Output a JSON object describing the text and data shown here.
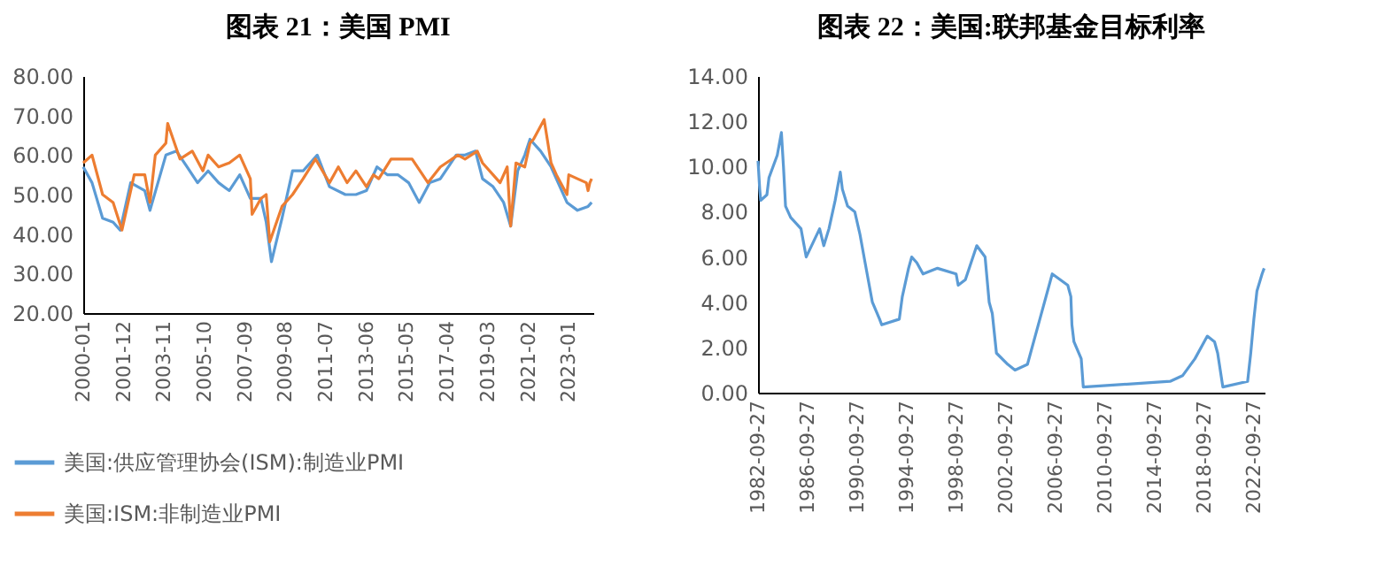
{
  "chart_data": [
    {
      "type": "line",
      "title": "图表 21：美国 PMI",
      "legend": "bottom left",
      "xlim": [
        "2000-01",
        "2024-03"
      ],
      "xticks": [
        "2000-01",
        "2001-12",
        "2003-11",
        "2005-10",
        "2007-09",
        "2009-08",
        "2011-07",
        "2013-06",
        "2015-05",
        "2017-04",
        "2019-03",
        "2021-02",
        "2023-01"
      ],
      "ylim": [
        20,
        80
      ],
      "yticks": [
        {
          "value": 20,
          "label": "20.00"
        },
        {
          "value": 30,
          "label": "30.00"
        },
        {
          "value": 40,
          "label": "40.00"
        },
        {
          "value": 50,
          "label": "50.00"
        },
        {
          "value": 60,
          "label": "60.00"
        },
        {
          "value": 70,
          "label": "70.00"
        },
        {
          "value": 80,
          "label": "80.00"
        }
      ],
      "series": [
        {
          "name": "美国:供应管理协会(ISM):制造业PMI",
          "color": "#5b9bd5",
          "x": [
            "2000-01",
            "2000-06",
            "2000-12",
            "2001-06",
            "2001-10",
            "2002-04",
            "2002-12",
            "2003-03",
            "2003-12",
            "2004-06",
            "2004-12",
            "2005-06",
            "2005-12",
            "2006-06",
            "2006-12",
            "2007-06",
            "2007-12",
            "2008-06",
            "2008-09",
            "2008-12",
            "2009-06",
            "2009-12",
            "2010-06",
            "2011-02",
            "2011-09",
            "2012-06",
            "2012-12",
            "2013-06",
            "2013-12",
            "2014-06",
            "2014-12",
            "2015-06",
            "2015-12",
            "2016-06",
            "2016-12",
            "2017-09",
            "2018-02",
            "2018-08",
            "2018-12",
            "2019-06",
            "2019-12",
            "2020-04",
            "2020-08",
            "2020-12",
            "2021-03",
            "2021-09",
            "2022-03",
            "2022-09",
            "2022-12",
            "2023-06",
            "2023-12",
            "2024-02"
          ],
          "values": [
            57,
            53,
            44,
            43,
            41,
            53,
            51,
            46,
            60,
            61,
            57,
            53,
            56,
            53,
            51,
            55,
            49,
            49,
            43,
            33,
            44,
            56,
            56,
            60,
            52,
            50,
            50,
            51,
            57,
            55,
            55,
            53,
            48,
            53,
            54,
            60,
            60,
            61,
            54,
            52,
            48,
            42,
            56,
            60,
            64,
            61,
            57,
            51,
            48,
            46,
            47,
            48
          ]
        },
        {
          "name": "美国:ISM:非制造业PMI",
          "color": "#ed7d31",
          "x": [
            "2000-01",
            "2000-06",
            "2000-12",
            "2001-06",
            "2001-11",
            "2002-06",
            "2002-12",
            "2003-03",
            "2003-06",
            "2003-12",
            "2004-01",
            "2004-08",
            "2005-03",
            "2005-09",
            "2005-12",
            "2006-06",
            "2006-12",
            "2007-06",
            "2007-12",
            "2008-01",
            "2008-06",
            "2008-09",
            "2008-11",
            "2009-06",
            "2009-12",
            "2010-06",
            "2011-01",
            "2011-09",
            "2012-02",
            "2012-07",
            "2012-12",
            "2013-06",
            "2013-10",
            "2014-01",
            "2014-08",
            "2015-08",
            "2016-05",
            "2016-12",
            "2017-10",
            "2018-02",
            "2018-09",
            "2018-12",
            "2019-06",
            "2019-10",
            "2020-02",
            "2020-04",
            "2020-07",
            "2020-12",
            "2021-03",
            "2021-05",
            "2021-11",
            "2022-03",
            "2022-06",
            "2022-12",
            "2023-01",
            "2023-06",
            "2023-11",
            "2023-12",
            "2024-01",
            "2024-02"
          ],
          "values": [
            58,
            60,
            50,
            48,
            41,
            55,
            55,
            48,
            60,
            63,
            68,
            59,
            61,
            56,
            60,
            57,
            58,
            60,
            54,
            45,
            49,
            50,
            38,
            47,
            50,
            54,
            59,
            53,
            57,
            53,
            56,
            52,
            55,
            54,
            59,
            59,
            53,
            57,
            60,
            59,
            61,
            58,
            55,
            53,
            57,
            42,
            58,
            57,
            63,
            64,
            69,
            58,
            55,
            50,
            55,
            54,
            53,
            51,
            53,
            54
          ]
        }
      ]
    },
    {
      "type": "line",
      "title": "图表 22：美国:联邦基金目标利率",
      "xlim": [
        "1982-09-27",
        "2023-07-27"
      ],
      "xticks": [
        "1982-09-27",
        "1986-09-27",
        "1990-09-27",
        "1994-09-27",
        "1998-09-27",
        "2002-09-27",
        "2006-09-27",
        "2010-09-27",
        "2014-09-27",
        "2018-09-27",
        "2022-09-27"
      ],
      "ylim": [
        0,
        14
      ],
      "yticks": [
        {
          "value": 0,
          "label": "0.00"
        },
        {
          "value": 2,
          "label": "2.00"
        },
        {
          "value": 4,
          "label": "4.00"
        },
        {
          "value": 6,
          "label": "6.00"
        },
        {
          "value": 8,
          "label": "8.00"
        },
        {
          "value": 10,
          "label": "10.00"
        },
        {
          "value": 12,
          "label": "12.00"
        },
        {
          "value": 14,
          "label": "14.00"
        }
      ],
      "series": [
        {
          "color": "#5b9bd5",
          "x": [
            "1982-09-27",
            "1982-11-15",
            "1982-12-15",
            "1983-06-15",
            "1983-08-15",
            "1984-04-15",
            "1984-08-15",
            "1984-10-15",
            "1984-12-15",
            "1985-05-15",
            "1986-03-15",
            "1986-08-15",
            "1987-09-15",
            "1988-01-15",
            "1988-06-15",
            "1988-12-15",
            "1989-05-15",
            "1989-07-15",
            "1989-12-15",
            "1990-07-15",
            "1990-12-15",
            "1991-05-15",
            "1991-12-15",
            "1992-07-15",
            "1992-09-15",
            "1994-02-15",
            "1994-05-15",
            "1994-11-15",
            "1995-02-15",
            "1995-07-15",
            "1996-01-15",
            "1997-03-15",
            "1998-09-15",
            "1998-11-15",
            "1999-06-15",
            "2000-05-15",
            "2001-01-15",
            "2001-05-15",
            "2001-08-15",
            "2001-12-15",
            "2002-11-15",
            "2003-06-15",
            "2004-06-15",
            "2005-06-15",
            "2006-06-15",
            "2007-09-15",
            "2007-12-15",
            "2008-01-15",
            "2008-03-15",
            "2008-10-15",
            "2008-12-15",
            "2015-12-15",
            "2016-12-15",
            "2017-12-15",
            "2018-12-15",
            "2019-07-15",
            "2019-10-15",
            "2020-03-15",
            "2022-03-15",
            "2022-06-15",
            "2022-09-15",
            "2022-12-15",
            "2023-05-15",
            "2023-07-15"
          ],
          "values": [
            10.25,
            9.0,
            8.5,
            8.75,
            9.5,
            10.5,
            11.5,
            10.0,
            8.25,
            7.75,
            7.25,
            6.0,
            7.25,
            6.5,
            7.25,
            8.5,
            9.75,
            9.0,
            8.25,
            8.0,
            7.0,
            5.75,
            4.0,
            3.25,
            3.0,
            3.25,
            4.25,
            5.5,
            6.0,
            5.75,
            5.25,
            5.5,
            5.25,
            4.75,
            5.0,
            6.5,
            6.0,
            4.0,
            3.5,
            1.75,
            1.25,
            1.0,
            1.25,
            3.25,
            5.25,
            4.75,
            4.25,
            3.0,
            2.25,
            1.5,
            0.25,
            0.5,
            0.75,
            1.5,
            2.5,
            2.25,
            1.75,
            0.25,
            0.5,
            1.75,
            3.25,
            4.5,
            5.25,
            5.5
          ]
        }
      ]
    }
  ]
}
